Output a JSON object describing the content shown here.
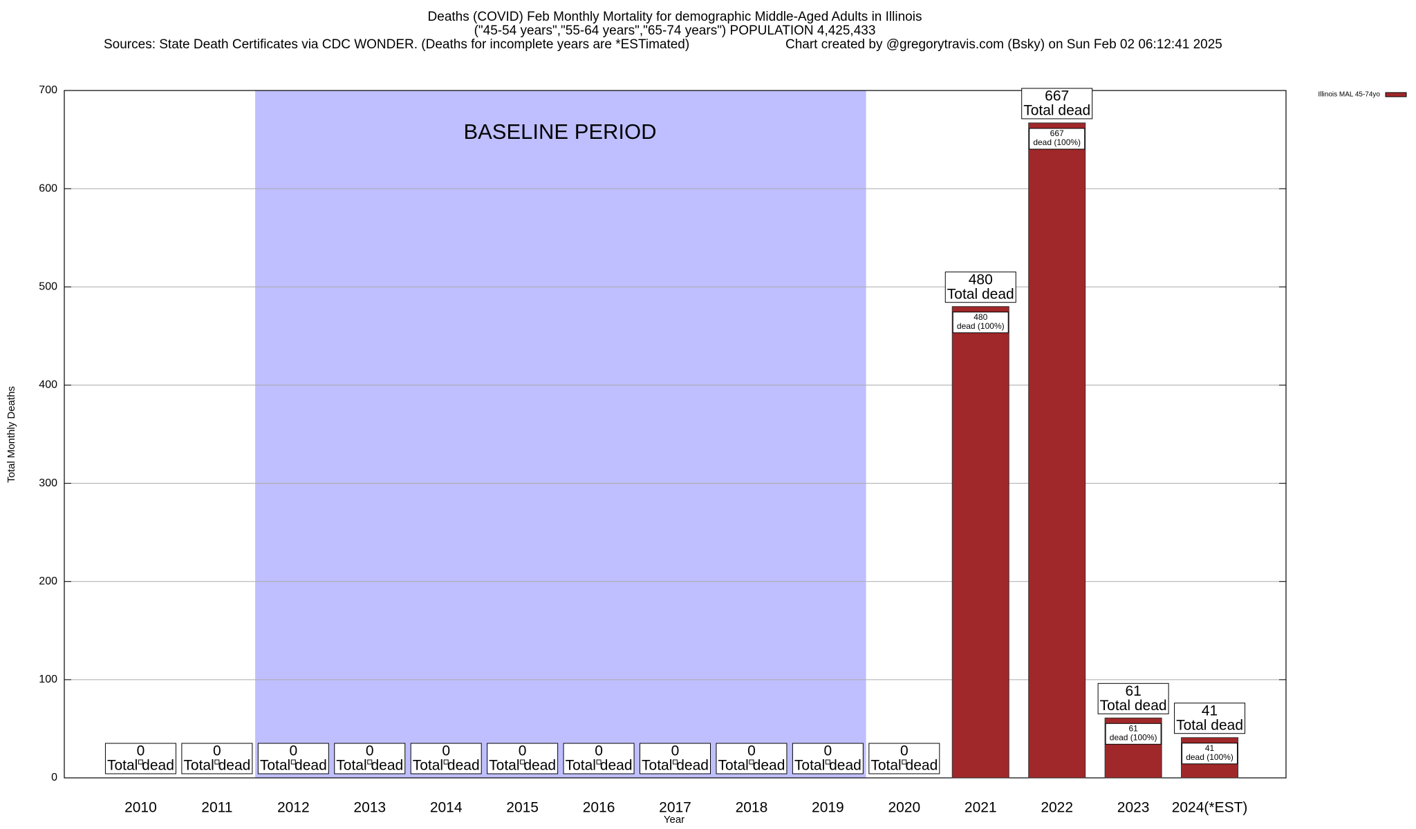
{
  "chart_data": {
    "type": "bar",
    "title": "Deaths (COVID) Feb Monthly Mortality for demographic Middle-Aged Adults in Illinois",
    "subtitle": "(\"45-54 years\",\"55-64 years\",\"65-74 years\") POPULATION 4,425,433",
    "source": "Sources: State Death Certificates via CDC WONDER. (Deaths for incomplete years are *ESTimated)",
    "credit": "Chart created by @gregorytravis.com (Bsky) on Sun Feb 02 06:12:41 2025",
    "annotation": "BASELINE PERIOD",
    "x_label": "Year",
    "y_label": "Total Monthly Deaths",
    "categories": [
      "2010",
      "2011",
      "2012",
      "2013",
      "2014",
      "2015",
      "2016",
      "2017",
      "2018",
      "2019",
      "2020",
      "2021",
      "2022",
      "2023",
      "2024(*EST)"
    ],
    "series": [
      {
        "name": "Illinois MAL 45-74yo",
        "color": "#a0282a",
        "values": [
          0,
          0,
          0,
          0,
          0,
          0,
          0,
          0,
          0,
          0,
          0,
          480,
          667,
          61,
          41
        ]
      }
    ],
    "total_label": "Total dead",
    "inner_label": "dead (100%)",
    "ylim": [
      0,
      700
    ],
    "yticks": [
      0,
      100,
      200,
      300,
      400,
      500,
      600,
      700
    ],
    "grid": true,
    "legend": "top-right",
    "shade_color": "#bfbfff"
  }
}
